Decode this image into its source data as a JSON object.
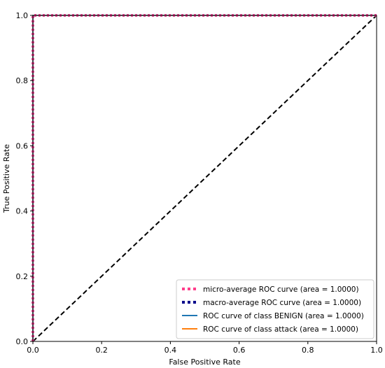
{
  "chart_data": {
    "type": "line",
    "title": "",
    "xlabel": "False Positive Rate",
    "ylabel": "True Positive Rate",
    "xlim": [
      0.0,
      1.0
    ],
    "ylim": [
      0.0,
      1.0
    ],
    "xticks": [
      "0.0",
      "0.2",
      "0.4",
      "0.6",
      "0.8",
      "1.0"
    ],
    "yticks": [
      "0.0",
      "0.2",
      "0.4",
      "0.6",
      "0.8",
      "1.0"
    ],
    "grid": false,
    "legend_position": "lower right",
    "series": [
      {
        "name": "micro-average ROC curve (area = 1.0000)",
        "color": "#ff3d8b",
        "linestyle": "dotted",
        "x": [
          0.0,
          0.0,
          1.0
        ],
        "y": [
          0.0,
          1.0,
          1.0
        ]
      },
      {
        "name": "macro-average ROC curve (area = 1.0000)",
        "color": "#00008b",
        "linestyle": "dotted",
        "x": [
          0.0,
          0.0,
          1.0
        ],
        "y": [
          0.0,
          1.0,
          1.0
        ]
      },
      {
        "name": "ROC curve of class BENIGN (area = 1.0000)",
        "color": "#1f77b4",
        "linestyle": "solid",
        "x": [
          0.0,
          0.0,
          1.0
        ],
        "y": [
          0.0,
          1.0,
          1.0
        ]
      },
      {
        "name": "ROC curve of class attack (area = 1.0000)",
        "color": "#ff7f0e",
        "linestyle": "solid",
        "x": [
          0.0,
          0.0,
          1.0
        ],
        "y": [
          0.0,
          1.0,
          1.0
        ]
      }
    ],
    "reference_line": {
      "color": "#000000",
      "linestyle": "dashed",
      "x": [
        0.0,
        1.0
      ],
      "y": [
        0.0,
        1.0
      ]
    }
  }
}
